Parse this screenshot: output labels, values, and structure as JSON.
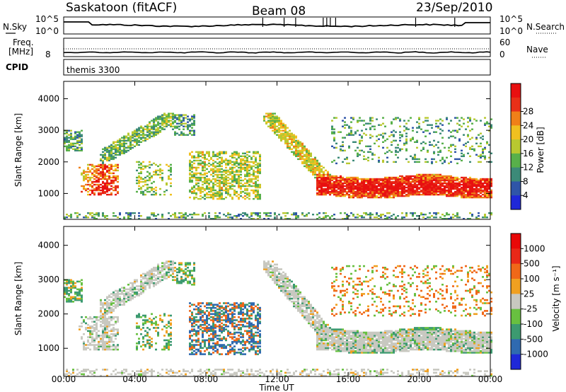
{
  "header": {
    "station": "Saskatoon (fitACF)",
    "beam": "Beam 08",
    "date": "23/Sep/2010"
  },
  "noise_panel": {
    "left_label": "N.Sky",
    "right_label": "N.Search",
    "left_ticks": [
      "10^5",
      "10^0"
    ],
    "right_ticks": [
      "10^5",
      "10^0"
    ]
  },
  "freq_panel": {
    "left_label_1": "Freq.",
    "left_label_2": "[MHz]",
    "left_tick": "8",
    "right_label": "Nave",
    "right_ticks": [
      "60",
      "0"
    ]
  },
  "cpid_panel": {
    "label": "CPID",
    "program": "themis 3300"
  },
  "chart_data": [
    {
      "type": "heatmap",
      "ylabel": "Slant Range [km]",
      "xlabel": "Time UT",
      "yticks": [
        1000,
        2000,
        3000,
        4000
      ],
      "ylim": [
        180,
        4550
      ],
      "xticks": [
        "00:00",
        "04:00",
        "08:00",
        "12:00",
        "16:00",
        "20:00",
        "00:00"
      ],
      "xlim_hours": [
        0,
        24
      ],
      "colorbar": {
        "label": "Power [dB]",
        "ticks": [
          "4",
          "8",
          "12",
          "16",
          "20",
          "24",
          "28"
        ],
        "colors": [
          "#1f28d8",
          "#2f55a8",
          "#3c8a78",
          "#58b04a",
          "#b8c830",
          "#f0c020",
          "#f08018",
          "#e83018",
          "#e81010"
        ]
      }
    },
    {
      "type": "heatmap",
      "ylabel": "Slant Range [km]",
      "xlabel": "Time UT",
      "yticks": [
        1000,
        2000,
        3000,
        4000
      ],
      "ylim": [
        180,
        4550
      ],
      "xticks": [
        "00:00",
        "04:00",
        "08:00",
        "12:00",
        "16:00",
        "20:00",
        "00:00"
      ],
      "xlim_hours": [
        0,
        24
      ],
      "colorbar": {
        "label": "Velocity [m s⁻¹]",
        "ticks": [
          "1000",
          "500",
          "100",
          "25",
          "-25",
          "-100",
          "-500",
          "-1000"
        ],
        "colors": [
          "#1f28d8",
          "#2f6ab0",
          "#3c9a70",
          "#68c040",
          "#c8c8c0",
          "#f0a020",
          "#f06818",
          "#e82818",
          "#e80808"
        ]
      }
    }
  ],
  "xaxis": {
    "label": "Time UT",
    "ticks": [
      "00:00",
      "04:00",
      "08:00",
      "12:00",
      "16:00",
      "20:00",
      "00:00"
    ]
  }
}
